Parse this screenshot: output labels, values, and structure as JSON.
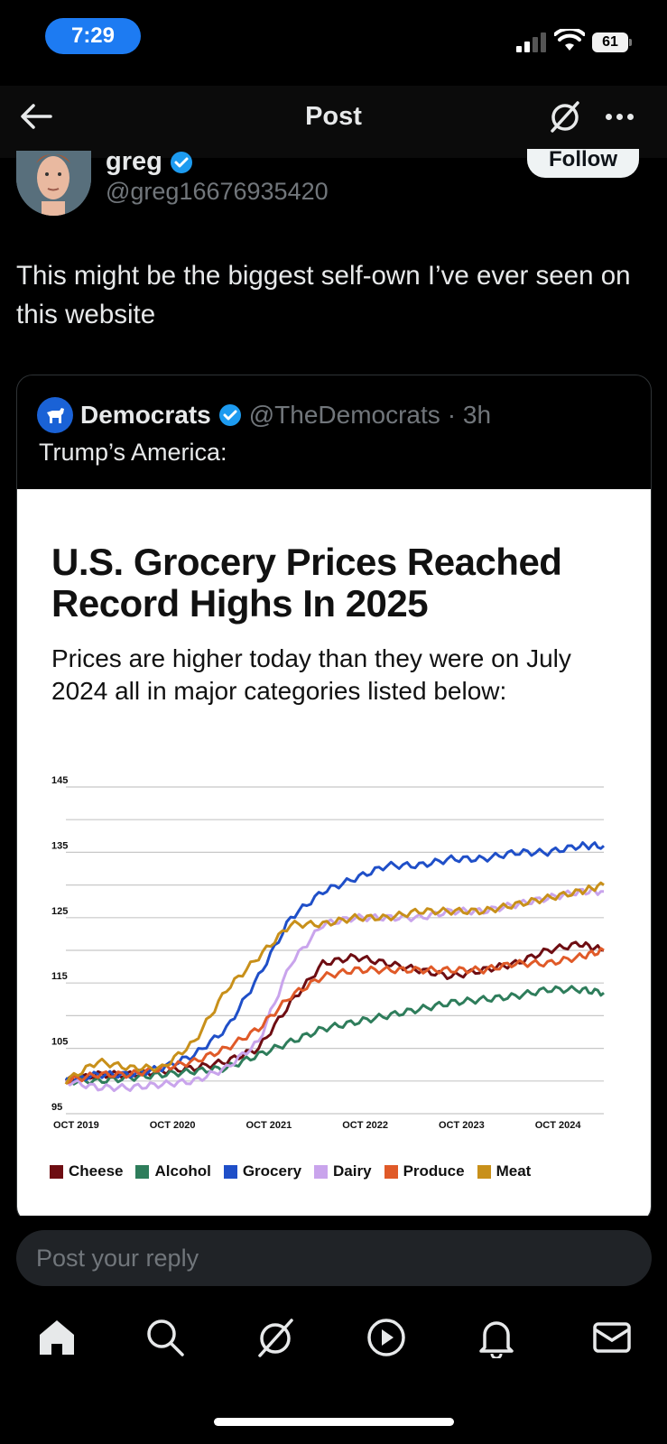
{
  "status_bar": {
    "time": "7:29",
    "battery": "61"
  },
  "header": {
    "title": "Post"
  },
  "post": {
    "author_name": "greg",
    "author_handle": "@greg16676935420",
    "follow_label": "Follow",
    "text": "This might be the biggest self-own I’ve ever seen on this website"
  },
  "quote": {
    "name": "Democrats",
    "handle": "@TheDemocrats",
    "time": "· 3h",
    "text": "Trump’s America:",
    "image_title": "U.S. Grocery Prices Reached Record Highs In 2025",
    "image_subtitle": "Prices are higher today than they were on July 2024 all in major categories listed below:"
  },
  "reply": {
    "placeholder": "Post your reply"
  },
  "icons": [
    "back-arrow-icon",
    "grok-icon",
    "more-icon",
    "verified-badge-icon",
    "democrats-logo-icon",
    "home-icon",
    "search-icon",
    "grok-icon",
    "video-icon",
    "bell-icon",
    "mail-icon"
  ],
  "colors": {
    "cheese": "#6e0d12",
    "alcohol": "#2e7d5b",
    "grocery": "#1f4fc8",
    "dairy": "#c9a4ec",
    "produce": "#e05a28",
    "meat": "#c8901a",
    "verified": "#1d9bf0",
    "time_pill": "#1d7bf2"
  },
  "chart_data": {
    "type": "line",
    "title": "U.S. Grocery Prices Reached Record Highs In 2025",
    "subtitle": "Prices are higher today than they were on July 2024 all in major categories listed below:",
    "x_tick_labels": [
      "OCT 2019",
      "OCT 2020",
      "OCT 2021",
      "OCT 2022",
      "OCT 2023",
      "OCT 2024"
    ],
    "y_tick_labels": [
      "95",
      "105",
      "115",
      "125",
      "135",
      "145"
    ],
    "ylim": [
      95,
      145
    ],
    "grid": true,
    "legend_placement": "bottom",
    "x": [
      "2019-10",
      "2020-02",
      "2020-06",
      "2020-10",
      "2021-02",
      "2021-06",
      "2021-10",
      "2022-02",
      "2022-06",
      "2022-10",
      "2023-02",
      "2023-06",
      "2023-10",
      "2024-02",
      "2024-06",
      "2024-10",
      "2025-02",
      "2025-05"
    ],
    "series": [
      {
        "name": "Cheese",
        "values": [
          100,
          101,
          101,
          101.5,
          102,
          103,
          105,
          112,
          118,
          119,
          118,
          117,
          116,
          117,
          118,
          120,
          121,
          120
        ]
      },
      {
        "name": "Alcohol",
        "values": [
          100,
          100,
          100.5,
          101,
          101.5,
          102,
          104,
          106,
          108,
          109,
          110,
          111,
          112,
          112.5,
          113,
          114,
          114,
          113.5
        ]
      },
      {
        "name": "Grocery",
        "values": [
          100,
          101,
          101,
          102,
          104,
          108,
          116,
          125,
          129,
          131,
          133,
          133,
          134,
          134,
          135,
          135,
          136,
          136
        ]
      },
      {
        "name": "Dairy",
        "values": [
          100,
          99,
          99,
          99.5,
          100,
          102,
          106,
          118,
          124,
          125,
          125,
          125,
          126,
          126,
          127,
          128,
          129,
          129
        ]
      },
      {
        "name": "Produce",
        "values": [
          100,
          101,
          101,
          102,
          103,
          105,
          108,
          113,
          116,
          117,
          117,
          117,
          117,
          117,
          118,
          118,
          119,
          120
        ]
      },
      {
        "name": "Meat",
        "values": [
          100,
          103,
          102,
          102,
          106,
          114,
          119,
          124,
          124,
          125,
          125,
          126,
          126,
          126,
          127,
          128,
          129,
          130
        ]
      }
    ]
  }
}
